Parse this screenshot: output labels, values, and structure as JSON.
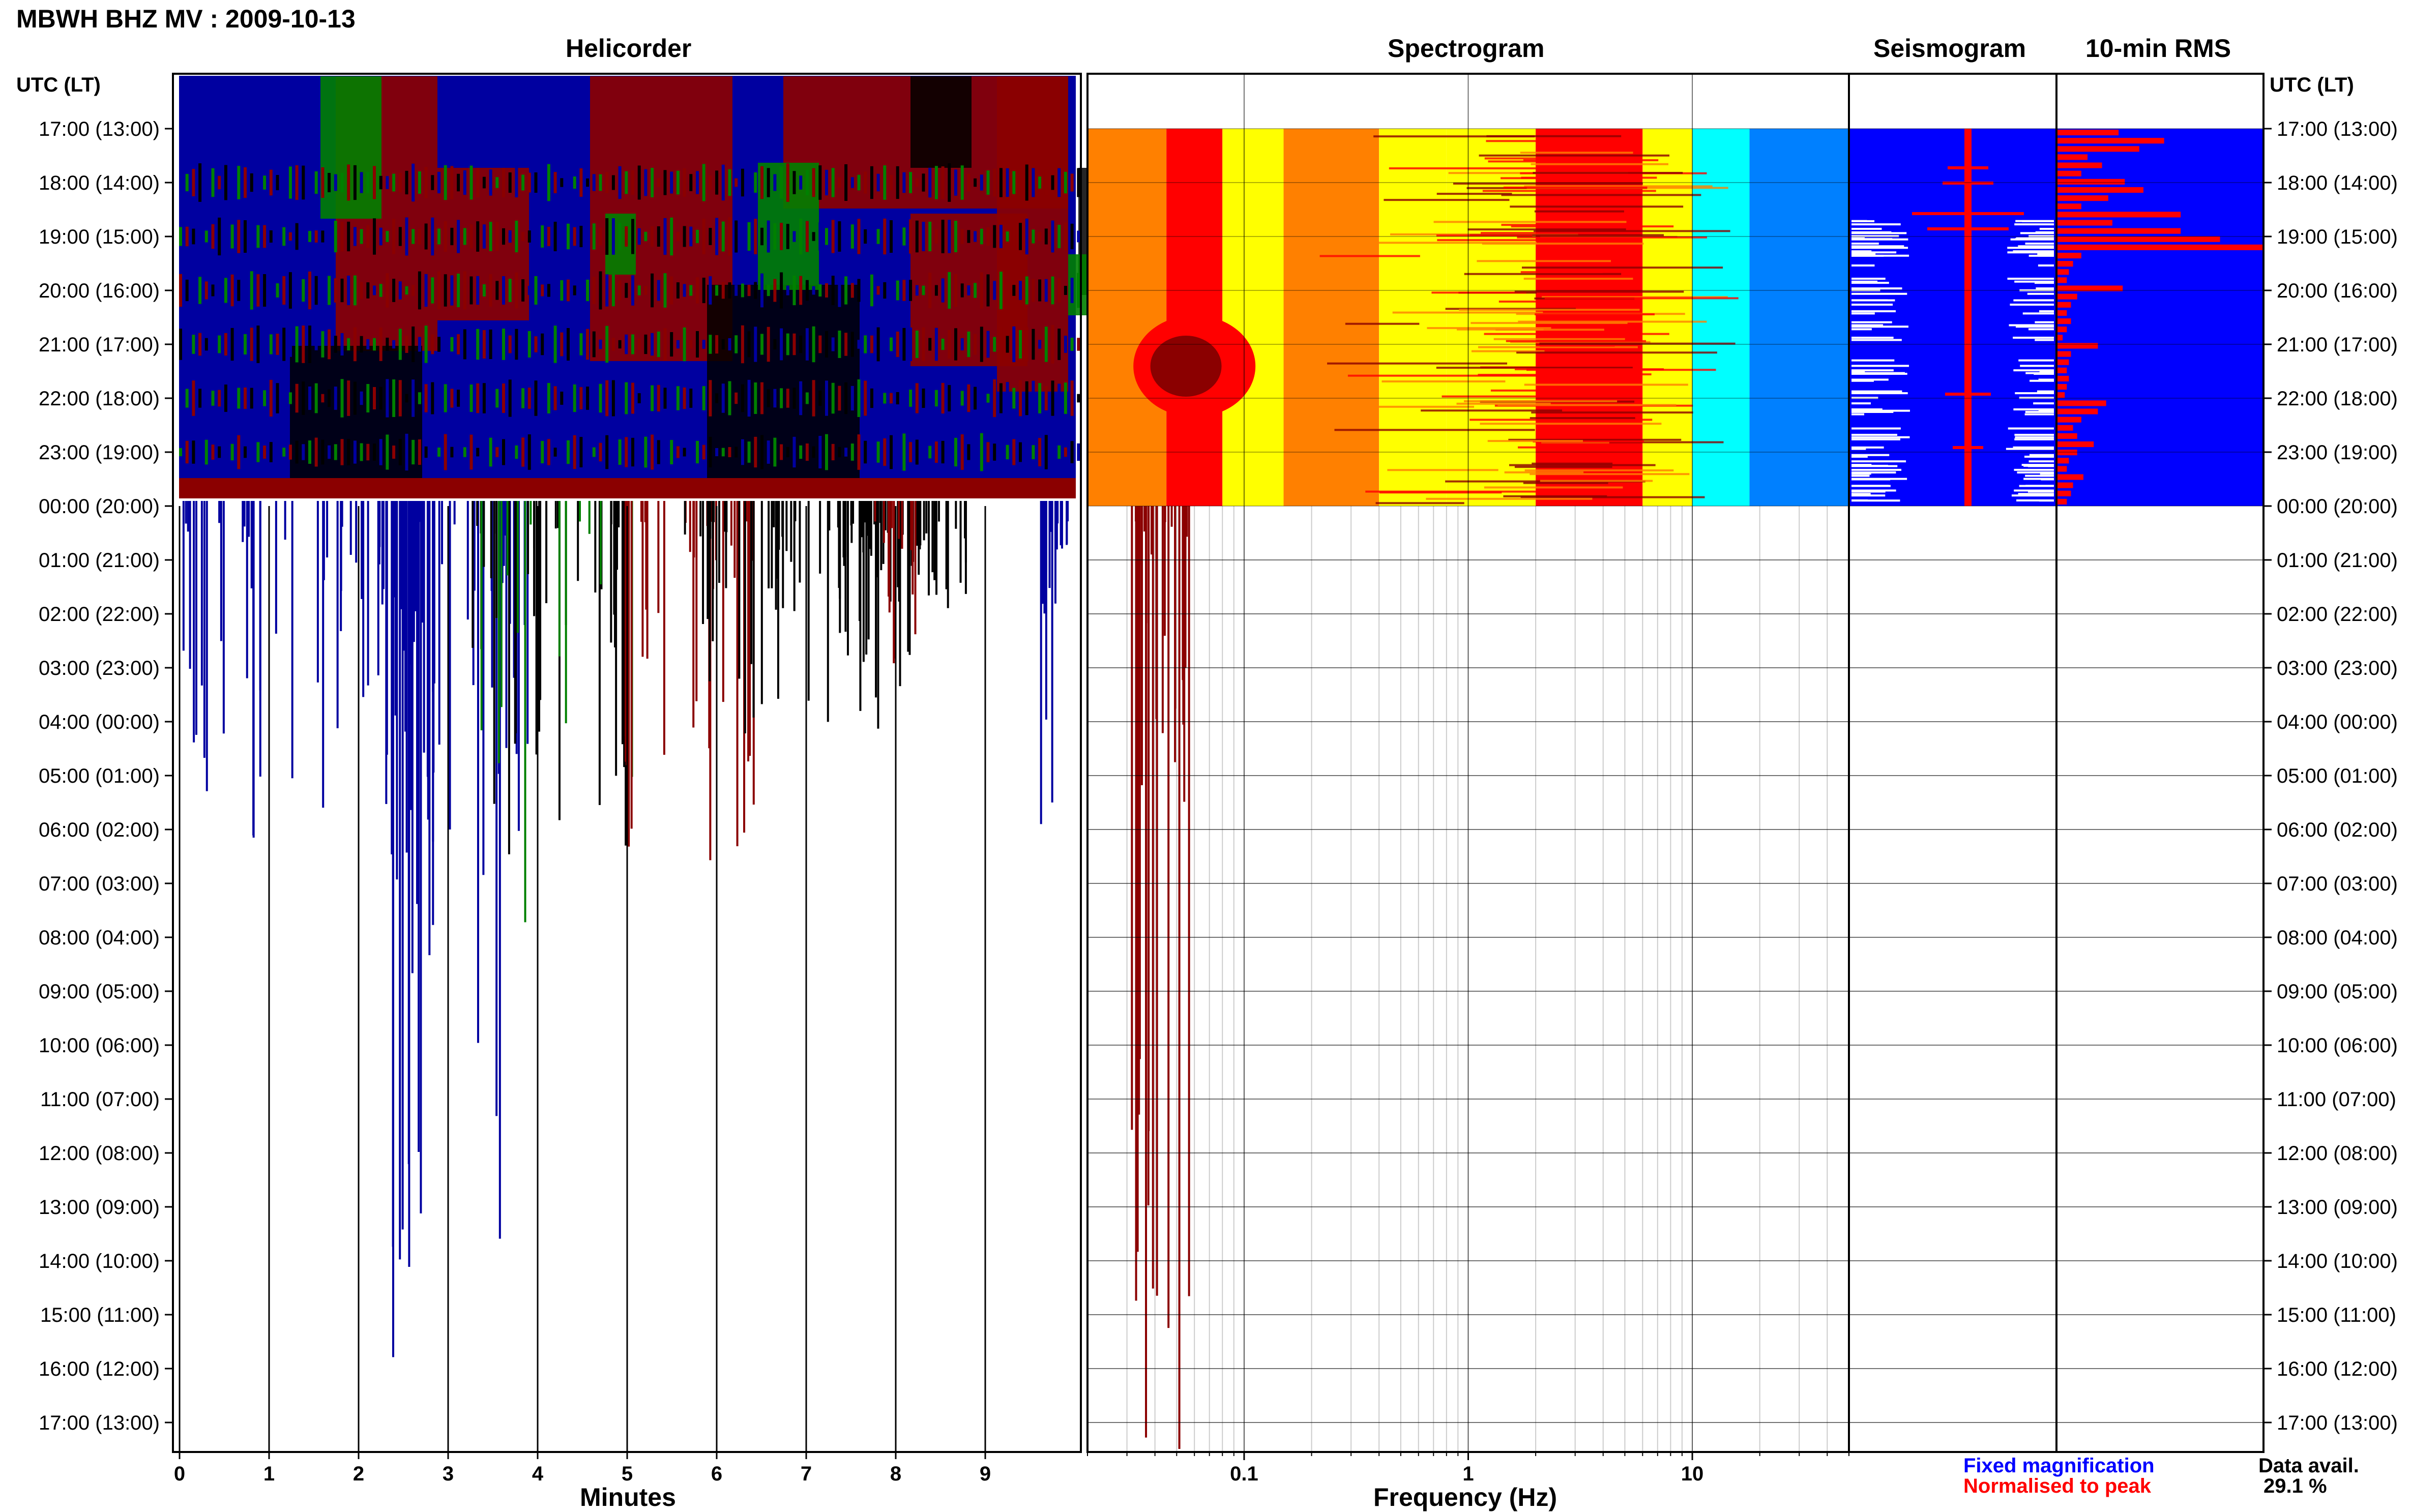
{
  "page_title": "MBWH BHZ MV : 2009-10-13",
  "panels": {
    "helicorder": "Helicorder",
    "spectrogram": "Spectrogram",
    "seismogram": "Seismogram",
    "rms": "10-min RMS"
  },
  "time_axis_label": "UTC (LT)",
  "row_labels": [
    "17:00 (13:00)",
    "18:00 (14:00)",
    "19:00 (15:00)",
    "20:00 (16:00)",
    "21:00 (17:00)",
    "22:00 (18:00)",
    "23:00 (19:00)",
    "00:00 (20:00)",
    "01:00 (21:00)",
    "02:00 (22:00)",
    "03:00 (23:00)",
    "04:00 (00:00)",
    "05:00 (01:00)",
    "06:00 (02:00)",
    "07:00 (03:00)",
    "08:00 (04:00)",
    "09:00 (05:00)",
    "10:00 (06:00)",
    "11:00 (07:00)",
    "12:00 (08:00)",
    "13:00 (09:00)",
    "14:00 (10:00)",
    "15:00 (11:00)",
    "16:00 (12:00)",
    "17:00 (13:00)"
  ],
  "legend": {
    "fixed": "Fixed magnification",
    "normalised": "Normalised to peak",
    "data_avail_label": "Data avail.",
    "data_avail_value": "29.1 %"
  },
  "colors": {
    "helicorder_traces": [
      "#000000",
      "#0000a0",
      "#008000",
      "#8b0000"
    ],
    "seismogram_fixed": "#0000ff",
    "seismogram_normalised": "#ff0000",
    "rms_bars": "#ff0000",
    "rms_fill": "#0000ff",
    "spectrogram_colormap": [
      "#00008b",
      "#0080ff",
      "#00ffff",
      "#ffff00",
      "#ff8000",
      "#ff0000",
      "#8b0000"
    ]
  },
  "chart_data": [
    {
      "type": "line",
      "panel": "Helicorder",
      "xlabel": "Minutes",
      "x_ticks": [
        0,
        1,
        2,
        3,
        4,
        5,
        6,
        7,
        8,
        9
      ],
      "xlim": [
        0,
        10
      ],
      "rows": 25,
      "data_rows": 7
    },
    {
      "type": "heatmap",
      "panel": "Spectrogram",
      "xlabel": "Frequency (Hz)",
      "x_scale": "log",
      "x_ticks": [
        0.1,
        1,
        10
      ],
      "x_tick_labels": [
        "0.1",
        "1",
        "10"
      ],
      "xlim": [
        0.02,
        50
      ],
      "rows": 24,
      "data_rows": 7
    },
    {
      "type": "line",
      "panel": "Seismogram",
      "rows": 24,
      "data_rows": 7
    },
    {
      "type": "bar",
      "panel": "10-min RMS",
      "values": [
        0.3,
        0.52,
        0.4,
        0.15,
        0.22,
        0.12,
        0.33,
        0.42,
        0.25,
        0.12,
        0.6,
        0.27,
        0.6,
        0.79,
        1.0,
        0.12,
        0.08,
        0.06,
        0.05,
        0.32,
        0.1,
        0.07,
        0.05,
        0.07,
        0.05,
        0.03,
        0.2,
        0.07,
        0.06,
        0.05,
        0.06,
        0.05,
        0.04,
        0.24,
        0.2,
        0.12,
        0.08,
        0.1,
        0.18,
        0.1,
        0.06,
        0.05,
        0.13,
        0.08,
        0.07,
        0.05
      ]
    }
  ]
}
